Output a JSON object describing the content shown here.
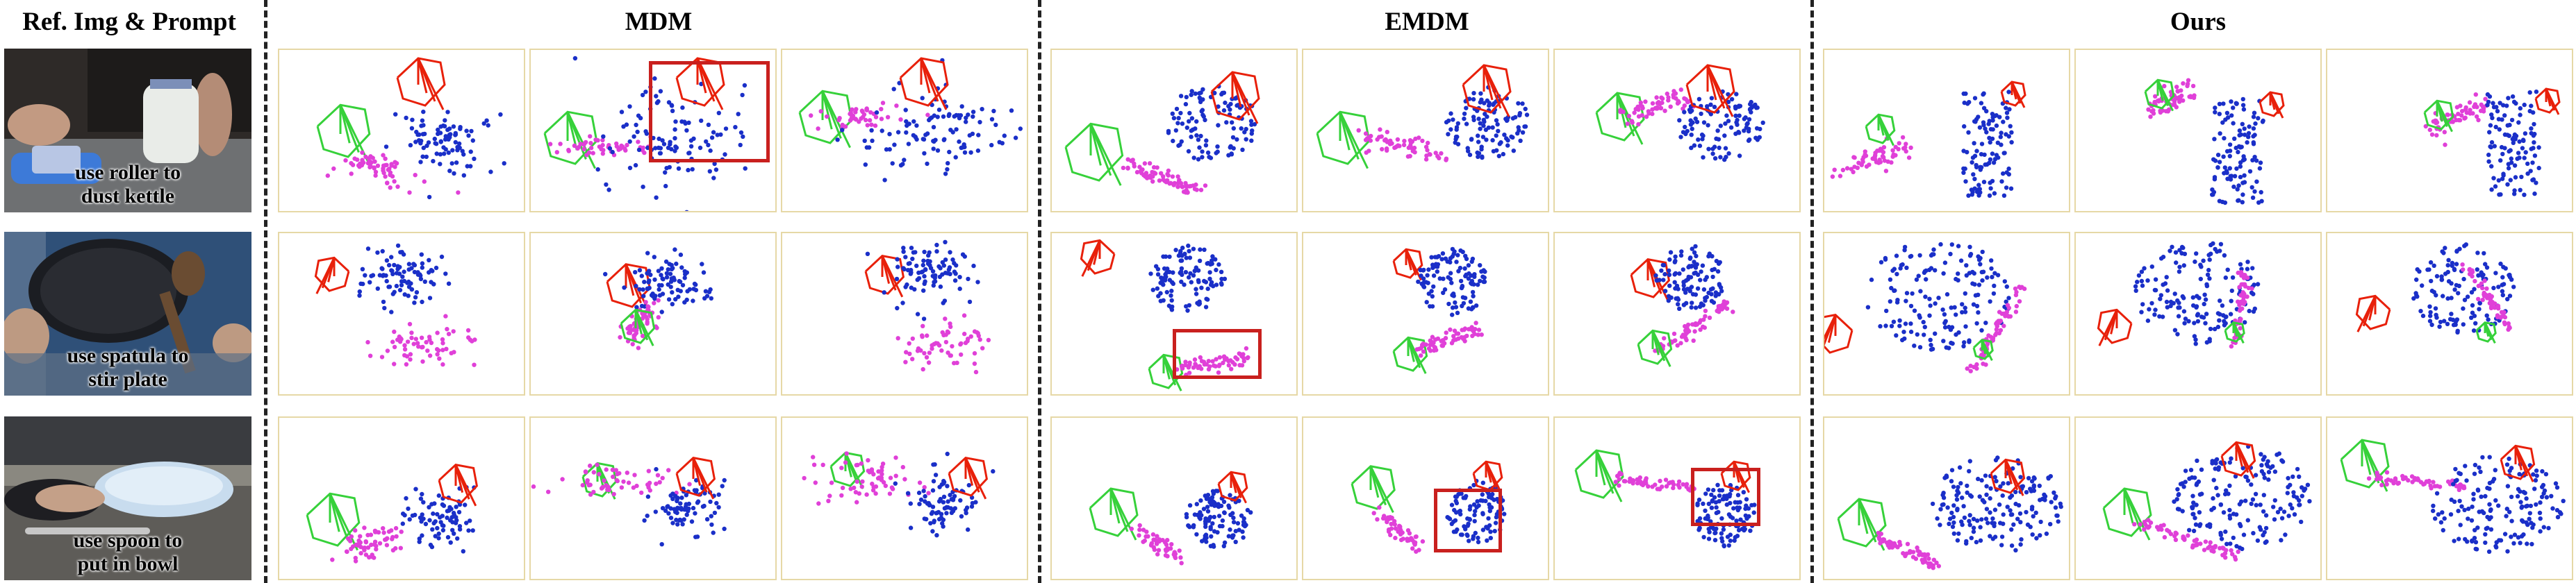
{
  "headers": {
    "ref": "Ref. Img & Prompt",
    "mdm": "MDM",
    "emdm": "EMDM",
    "ours": "Ours"
  },
  "rows": [
    {
      "prompt": [
        "use roller to",
        "dust kettle"
      ]
    },
    {
      "prompt": [
        "use spatula to",
        "stir plate"
      ]
    },
    {
      "prompt": [
        "use spoon to",
        "put in bowl"
      ]
    }
  ],
  "colors": {
    "object_points": "#1a2fc8",
    "tool_points": "#e040d8",
    "hand_red": "#e8200a",
    "hand_green": "#36d13a",
    "highlight_box": "#c9201e",
    "panel_border": "#e6d8a6"
  }
}
